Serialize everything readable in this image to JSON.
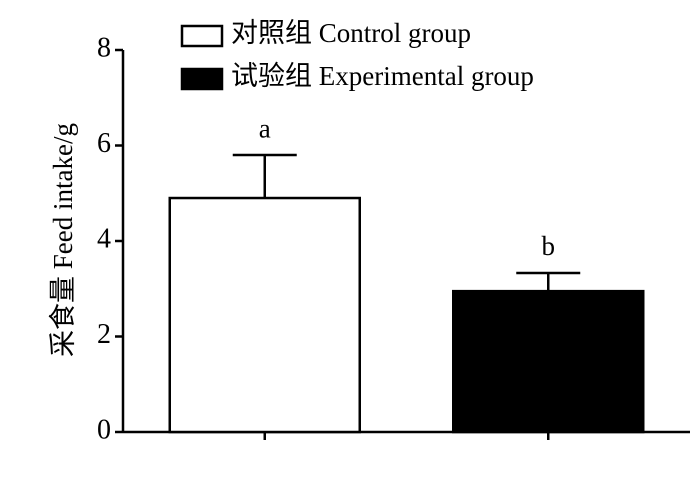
{
  "chart_data": {
    "type": "bar",
    "y_label": "采食量 Feed intake/g",
    "categories": [
      null,
      null
    ],
    "series": [
      {
        "name": "对照组 Control group",
        "color": "#ffffff",
        "values": [
          4.9,
          null
        ],
        "errors": [
          0.9,
          null
        ],
        "annotations": [
          "a",
          null
        ]
      },
      {
        "name": "试验组 Experimental group",
        "color": "#000000",
        "values": [
          null,
          2.95
        ],
        "errors": [
          null,
          0.38
        ],
        "annotations": [
          null,
          "b"
        ]
      }
    ],
    "ylim": [
      0,
      8
    ],
    "yticks": [
      0,
      2,
      4,
      6,
      8
    ],
    "grid": false,
    "legend": "top-left"
  }
}
